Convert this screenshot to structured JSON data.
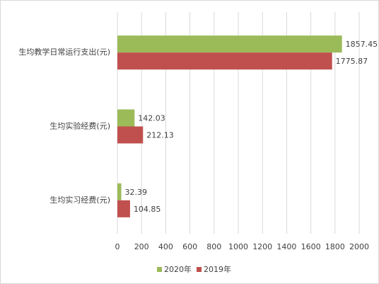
{
  "chart_data": {
    "type": "bar",
    "orientation": "horizontal",
    "categories": [
      "生均教学日常运行支出(元)",
      "生均实验经费(元)",
      "生均实习经费(元)"
    ],
    "series": [
      {
        "name": "2020年",
        "color": "#9bbb59",
        "values": [
          1857.45,
          142.03,
          32.39
        ]
      },
      {
        "name": "2019年",
        "color": "#c0504d",
        "values": [
          1775.87,
          212.13,
          104.85
        ]
      }
    ],
    "xlim": [
      0,
      2000
    ],
    "xticks": [
      0,
      200,
      400,
      600,
      800,
      1000,
      1200,
      1400,
      1600,
      1800,
      2000
    ],
    "grid": true,
    "legend": "bottom"
  }
}
